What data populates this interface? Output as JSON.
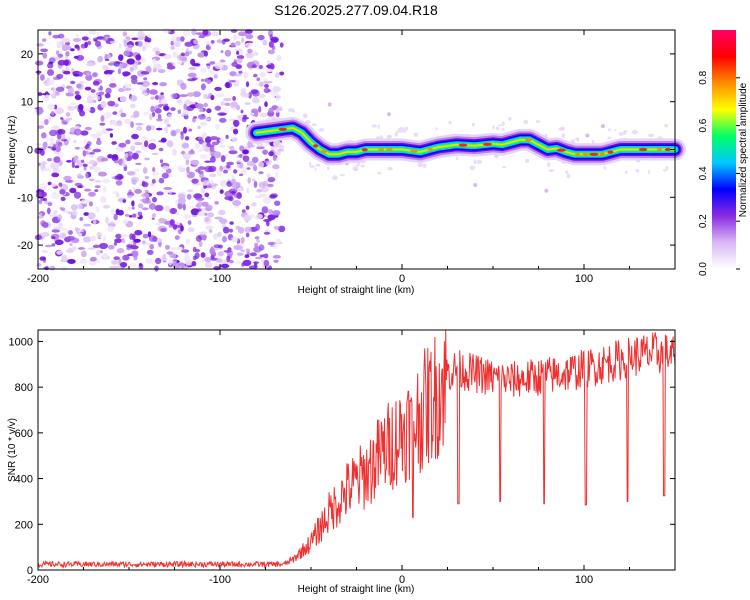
{
  "title": "S126.2025.277.09.04.R18",
  "chart_data": [
    {
      "type": "heatmap",
      "name": "spectrogram",
      "title": "S126.2025.277.09.04.R18",
      "xlabel": "Height of straight line (km)",
      "ylabel": "Frequency (Hz)",
      "xlim": [
        -200,
        150
      ],
      "ylim": [
        -25,
        25
      ],
      "x_ticks": [
        -200,
        -100,
        0,
        100
      ],
      "y_ticks": [
        -20,
        -10,
        0,
        10,
        20
      ],
      "colorbar": {
        "label": "Normalized spectral amplitude",
        "range": [
          0.0,
          1.0
        ],
        "ticks": [
          "0.0",
          "0.2",
          "0.4",
          "0.6",
          "0.8"
        ],
        "colors": [
          "#ffffff",
          "#d9b8f5",
          "#8a2be2",
          "#0000ff",
          "#00c8ff",
          "#00ff66",
          "#ffff00",
          "#ff8c00",
          "#ff0000",
          "#ff0066"
        ]
      },
      "noise_region_x": [
        -200,
        -70
      ],
      "ridge": {
        "x": [
          -80,
          -70,
          -60,
          -55,
          -50,
          -45,
          -40,
          -35,
          -30,
          -25,
          -20,
          -10,
          0,
          10,
          20,
          30,
          40,
          50,
          55,
          60,
          65,
          70,
          75,
          80,
          85,
          90,
          95,
          100,
          110,
          120,
          130,
          140,
          150
        ],
        "y": [
          3.5,
          4,
          4.5,
          3.5,
          1.5,
          0,
          -1,
          -1,
          -0.5,
          -0.5,
          0,
          0,
          0,
          -0.5,
          0.5,
          1,
          0.8,
          1.2,
          1,
          1.5,
          2,
          2,
          1,
          0,
          0.2,
          -0.5,
          -1,
          -1,
          -1,
          0,
          0,
          0,
          0
        ]
      }
    },
    {
      "type": "line",
      "name": "snr",
      "xlabel": "Height of straight line (km)",
      "ylabel": "SNR (10 * v/v)",
      "xlim": [
        -200,
        150
      ],
      "ylim": [
        0,
        1050
      ],
      "x_ticks": [
        -200,
        -100,
        0,
        100
      ],
      "y_ticks": [
        0,
        200,
        400,
        600,
        800,
        1000
      ],
      "color": "#f03030",
      "envelope": {
        "x": [
          -200,
          -100,
          -65,
          -60,
          -50,
          -40,
          -30,
          -20,
          -10,
          0,
          10,
          20,
          25,
          30,
          40,
          50,
          60,
          70,
          80,
          90,
          100,
          110,
          120,
          130,
          140,
          150
        ],
        "y": [
          25,
          25,
          25,
          45,
          120,
          250,
          350,
          420,
          520,
          600,
          680,
          780,
          860,
          880,
          860,
          840,
          830,
          840,
          850,
          860,
          880,
          900,
          920,
          940,
          950,
          940
        ]
      },
      "dips": [
        {
          "x": 6,
          "y": 230
        },
        {
          "x": 31,
          "y": 290
        },
        {
          "x": 54,
          "y": 300
        },
        {
          "x": 78,
          "y": 290
        },
        {
          "x": 101,
          "y": 285
        },
        {
          "x": 124,
          "y": 300
        },
        {
          "x": 144,
          "y": 325
        }
      ]
    }
  ]
}
